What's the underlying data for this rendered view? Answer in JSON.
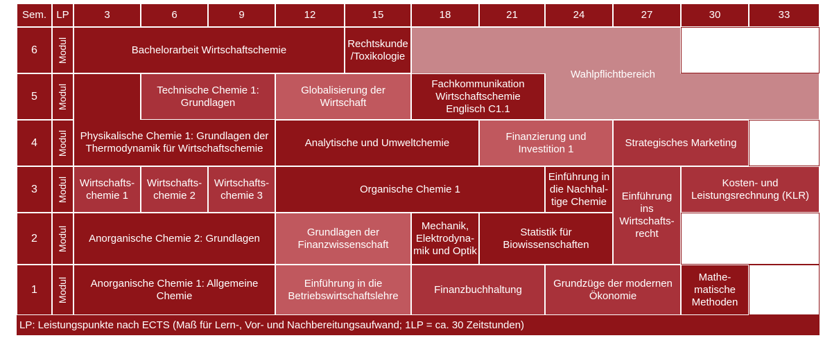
{
  "header": {
    "sem": "Sem.",
    "lp": "LP",
    "credits": [
      "3",
      "6",
      "9",
      "12",
      "15",
      "18",
      "21",
      "24",
      "27",
      "30",
      "33"
    ]
  },
  "semesters": [
    "6",
    "5",
    "4",
    "3",
    "2",
    "1"
  ],
  "modul_label": "Modul",
  "modules": {
    "bachelorarbeit": "Bachelorarbeit Wirtschaftschemie",
    "rechtskunde": "Rechtskunde /Toxikologie",
    "wahlpflicht": "Wahlpflichtbereich",
    "technische_chemie": "Technische Chemie 1: Grundlagen",
    "globalisierung": "Globalisierung der Wirtschaft",
    "fachkommunikation": "Fachkommunikation Wirtschaftschemie Englisch C1.1",
    "physikalische_chemie": "Physikalische Chemie 1: Grundlagen der Thermodynamik für Wirtschaftschemie",
    "analytische": "Analytische und Umweltchemie",
    "finanzierung": "Finanzierung und Investition 1",
    "marketing": "Strategisches Marketing",
    "wichem1": "Wirtschafts-chemie 1",
    "wichem2": "Wirtschafts-chemie 2",
    "wichem3": "Wirtschafts-chemie 3",
    "organische": "Organische Chemie 1",
    "nachhaltige": "Einführung in die Nachhal-tige Chemie",
    "wirtschaftsrecht": "Einführung ins Wirtschafts-recht",
    "klr": "Kosten- und Leistungsrechnung (KLR)",
    "anorganische2": "Anorganische Chemie 2: Grundlagen",
    "finanzwissenschaft": "Grundlagen der Finanzwissenschaft",
    "mechanik": "Mechanik, Elektrodyna-mik und Optik",
    "statistik": "Statistik für Biowissenschaften",
    "anorganische1": "Anorganische Chemie 1: Allgemeine Chemie",
    "bwl": "Einführung in die Betriebswirtschaftslehre",
    "finanzbuchhaltung": "Finanzbuchhaltung",
    "oekonomie": "Grundzüge der modernen Ökonomie",
    "mathe": "Mathe-matische Methoden"
  },
  "footer": "LP: Leistungspunkte nach ECTS (Maß für Lern-, Vor- und Nachbereitungsaufwand; 1LP = ca. 30 Zeitstunden)"
}
